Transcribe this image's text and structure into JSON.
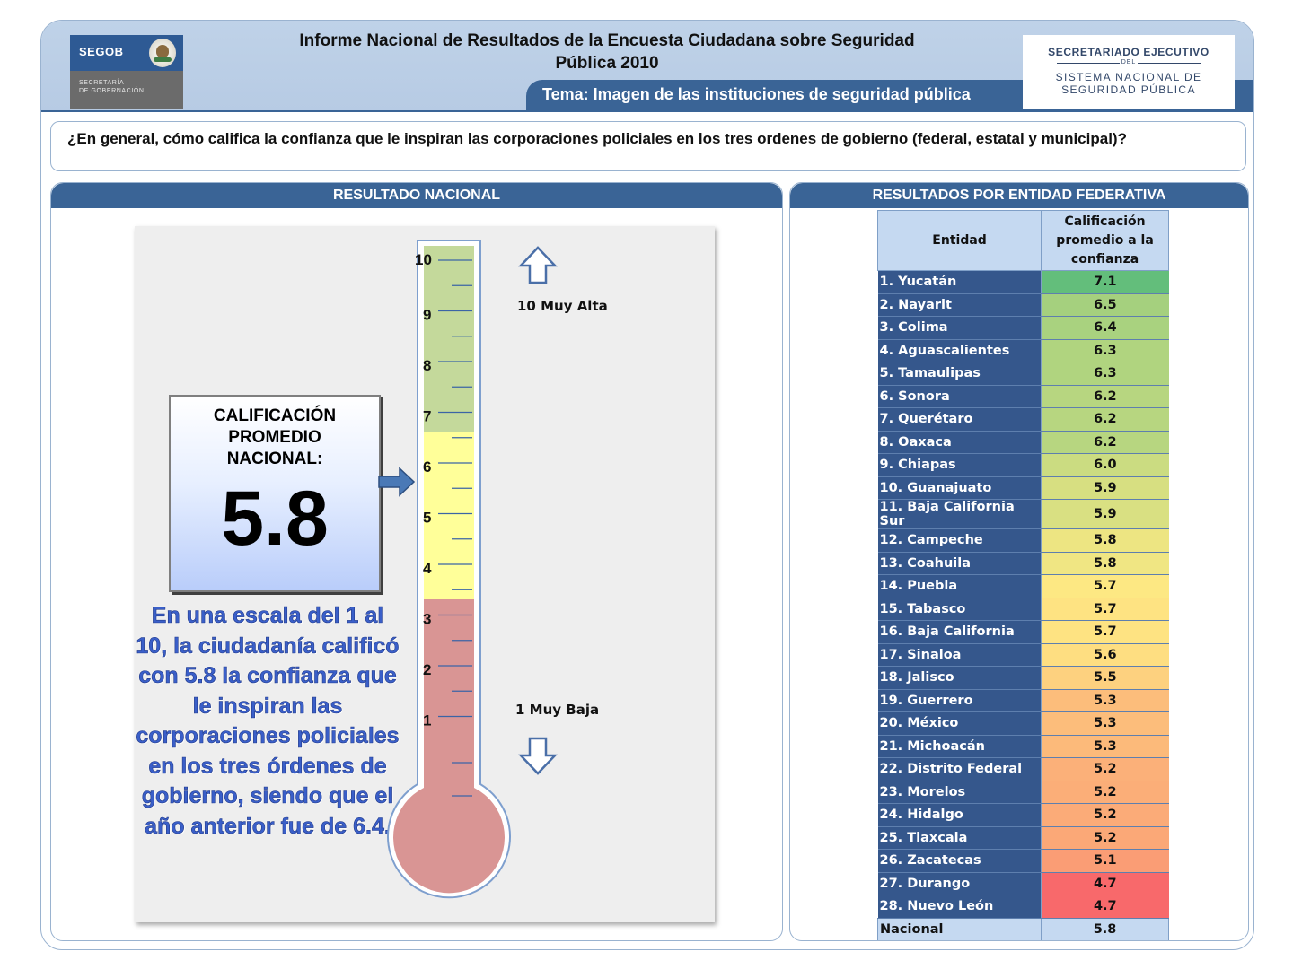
{
  "header": {
    "title_line1": "Informe Nacional de Resultados de la Encuesta Ciudadana sobre Seguridad",
    "title_line2": "Pública 2010",
    "tema": "Tema: Imagen de las instituciones de seguridad pública",
    "segob_logo": {
      "word": "SEGOB",
      "subtitle_line1": "SECRETARÍA",
      "subtitle_line2": "DE GOBERNACIÓN"
    },
    "sesnsp_logo": {
      "line1": "SECRETARIADO EJECUTIVO",
      "line2": "DEL",
      "line3": "SISTEMA NACIONAL DE",
      "line4": "SEGURIDAD PÚBLICA"
    }
  },
  "question": "¿En general, cómo califica la confianza que le inspiran las corporaciones policiales en los tres ordenes de gobierno (federal, estatal y municipal)?",
  "left_panel": {
    "heading": "RESULTADO NACIONAL",
    "calif_label_line1": "CALIFICACIÓN",
    "calif_label_line2": "PROMEDIO",
    "calif_label_line3": "NACIONAL:",
    "calif_value": "5.8",
    "description": "En una escala del 1 al 10, la ciudadanía calificó con 5.8 la confianza que le inspiran las corporaciones policiales en los tres órdenes de gobierno, siendo que el año anterior fue de 6.4.",
    "scale_high": "10 Muy Alta",
    "scale_low": "1 Muy Baja",
    "thermometer_ticks": [
      "10",
      "9",
      "8",
      "7",
      "6",
      "5",
      "4",
      "3",
      "2",
      "1"
    ],
    "zone_colors": {
      "high": "#c4d99b",
      "mid": "#ffff99",
      "low": "#d99594"
    }
  },
  "right_panel": {
    "heading": "RESULTADOS POR ENTIDAD FEDERATIVA",
    "col_entidad": "Entidad",
    "col_calif_line1": "Calificación",
    "col_calif_line2": "promedio a la",
    "col_calif_line3": "confianza",
    "rows": [
      {
        "name": "1. Yucatán",
        "value": "7.1",
        "color": "#63be7b"
      },
      {
        "name": "2. Nayarit",
        "value": "6.5",
        "color": "#a5d07e"
      },
      {
        "name": "3. Colima",
        "value": "6.4",
        "color": "#a9d27f"
      },
      {
        "name": "4. Aguascalientes",
        "value": "6.3",
        "color": "#b0d47f"
      },
      {
        "name": "5. Tamaulipas",
        "value": "6.3",
        "color": "#b0d47f"
      },
      {
        "name": "6. Sonora",
        "value": "6.2",
        "color": "#b7d680"
      },
      {
        "name": "7. Querétaro",
        "value": "6.2",
        "color": "#b7d680"
      },
      {
        "name": "8. Oaxaca",
        "value": "6.2",
        "color": "#b7d680"
      },
      {
        "name": "9. Chiapas",
        "value": "6.0",
        "color": "#cbdc81"
      },
      {
        "name": "10. Guanajuato",
        "value": "5.9",
        "color": "#d7df81"
      },
      {
        "name": "11. Baja California Sur",
        "value": "5.9",
        "color": "#d9e082"
      },
      {
        "name": "12. Campeche",
        "value": "5.8",
        "color": "#ede582"
      },
      {
        "name": "13. Coahuila",
        "value": "5.8",
        "color": "#f0e683"
      },
      {
        "name": "14. Puebla",
        "value": "5.7",
        "color": "#fde883"
      },
      {
        "name": "15. Tabasco",
        "value": "5.7",
        "color": "#fee382"
      },
      {
        "name": "16. Baja California",
        "value": "5.7",
        "color": "#fee382"
      },
      {
        "name": "17. Sinaloa",
        "value": "5.6",
        "color": "#fede81"
      },
      {
        "name": "18. Jalisco",
        "value": "5.5",
        "color": "#fdd17f"
      },
      {
        "name": "19. Guerrero",
        "value": "5.3",
        "color": "#fcbd7b"
      },
      {
        "name": "20. México",
        "value": "5.3",
        "color": "#fcbd7b"
      },
      {
        "name": "21. Michoacán",
        "value": "5.3",
        "color": "#fcba7a"
      },
      {
        "name": "22. Distrito Federal",
        "value": "5.2",
        "color": "#fbb079"
      },
      {
        "name": "23. Morelos",
        "value": "5.2",
        "color": "#fbae78"
      },
      {
        "name": "24. Hidalgo",
        "value": "5.2",
        "color": "#fbab78"
      },
      {
        "name": "25. Tlaxcala",
        "value": "5.2",
        "color": "#fba877"
      },
      {
        "name": "26. Zacatecas",
        "value": "5.1",
        "color": "#fa9d75"
      },
      {
        "name": "27. Durango",
        "value": "4.7",
        "color": "#f8696b"
      },
      {
        "name": "28. Nuevo León",
        "value": "4.7",
        "color": "#f8696b"
      }
    ],
    "total": {
      "name": "Nacional",
      "value": "5.8"
    }
  }
}
